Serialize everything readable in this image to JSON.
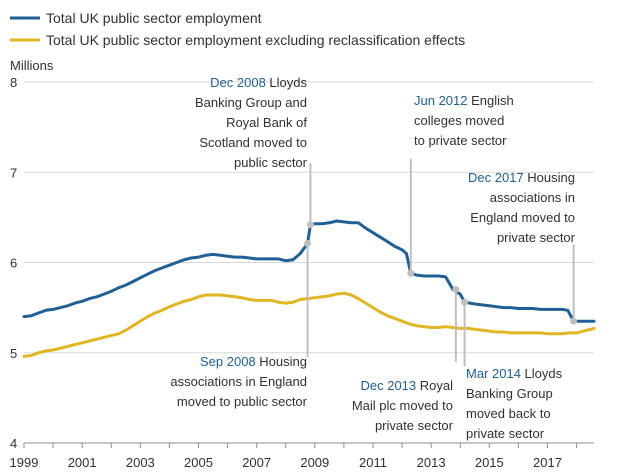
{
  "chart_data": {
    "type": "line",
    "title": "",
    "xlabel": "",
    "ylabel": "Millions",
    "ylim": [
      4,
      8
    ],
    "xlim": [
      1999,
      2018.6
    ],
    "y_ticks": [
      4,
      5,
      6,
      7,
      8
    ],
    "x_ticks": [
      1999,
      2001,
      2003,
      2005,
      2007,
      2009,
      2011,
      2013,
      2015,
      2017
    ],
    "grid": "horizontal",
    "legend_position": "top-left",
    "series": [
      {
        "name": "Total UK public sector employment",
        "color": "#206095",
        "points": [
          [
            1999.0,
            5.4
          ],
          [
            1999.25,
            5.41
          ],
          [
            1999.5,
            5.44
          ],
          [
            1999.75,
            5.47
          ],
          [
            2000.0,
            5.48
          ],
          [
            2000.25,
            5.5
          ],
          [
            2000.5,
            5.52
          ],
          [
            2000.75,
            5.55
          ],
          [
            2001.0,
            5.57
          ],
          [
            2001.25,
            5.6
          ],
          [
            2001.5,
            5.62
          ],
          [
            2001.75,
            5.65
          ],
          [
            2002.0,
            5.68
          ],
          [
            2002.25,
            5.72
          ],
          [
            2002.5,
            5.75
          ],
          [
            2002.75,
            5.79
          ],
          [
            2003.0,
            5.83
          ],
          [
            2003.25,
            5.87
          ],
          [
            2003.5,
            5.91
          ],
          [
            2003.75,
            5.94
          ],
          [
            2004.0,
            5.97
          ],
          [
            2004.25,
            6.0
          ],
          [
            2004.5,
            6.03
          ],
          [
            2004.75,
            6.05
          ],
          [
            2005.0,
            6.06
          ],
          [
            2005.25,
            6.08
          ],
          [
            2005.5,
            6.09
          ],
          [
            2005.75,
            6.08
          ],
          [
            2006.0,
            6.07
          ],
          [
            2006.25,
            6.06
          ],
          [
            2006.5,
            6.06
          ],
          [
            2006.75,
            6.05
          ],
          [
            2007.0,
            6.04
          ],
          [
            2007.25,
            6.04
          ],
          [
            2007.5,
            6.04
          ],
          [
            2007.75,
            6.04
          ],
          [
            2008.0,
            6.02
          ],
          [
            2008.25,
            6.03
          ],
          [
            2008.5,
            6.1
          ],
          [
            2008.75,
            6.21
          ],
          [
            2008.85,
            6.42
          ],
          [
            2009.0,
            6.43
          ],
          [
            2009.25,
            6.43
          ],
          [
            2009.5,
            6.44
          ],
          [
            2009.75,
            6.46
          ],
          [
            2010.0,
            6.45
          ],
          [
            2010.25,
            6.44
          ],
          [
            2010.5,
            6.44
          ],
          [
            2010.75,
            6.38
          ],
          [
            2011.0,
            6.33
          ],
          [
            2011.25,
            6.28
          ],
          [
            2011.5,
            6.23
          ],
          [
            2011.75,
            6.18
          ],
          [
            2012.0,
            6.14
          ],
          [
            2012.15,
            6.1
          ],
          [
            2012.3,
            5.88
          ],
          [
            2012.5,
            5.86
          ],
          [
            2012.75,
            5.85
          ],
          [
            2013.0,
            5.85
          ],
          [
            2013.25,
            5.85
          ],
          [
            2013.5,
            5.84
          ],
          [
            2013.75,
            5.7
          ],
          [
            2014.0,
            5.65
          ],
          [
            2014.15,
            5.56
          ],
          [
            2014.5,
            5.54
          ],
          [
            2014.75,
            5.53
          ],
          [
            2015.0,
            5.52
          ],
          [
            2015.25,
            5.51
          ],
          [
            2015.5,
            5.5
          ],
          [
            2015.75,
            5.5
          ],
          [
            2016.0,
            5.49
          ],
          [
            2016.25,
            5.49
          ],
          [
            2016.5,
            5.49
          ],
          [
            2016.75,
            5.48
          ],
          [
            2017.0,
            5.48
          ],
          [
            2017.25,
            5.48
          ],
          [
            2017.5,
            5.48
          ],
          [
            2017.7,
            5.47
          ],
          [
            2017.9,
            5.35
          ],
          [
            2018.25,
            5.35
          ],
          [
            2018.6,
            5.35
          ]
        ]
      },
      {
        "name": "Total UK public sector employment excluding reclassification effects",
        "color": "#e0b623",
        "points": [
          [
            1999.0,
            4.96
          ],
          [
            1999.25,
            4.97
          ],
          [
            1999.5,
            5.0
          ],
          [
            1999.75,
            5.02
          ],
          [
            2000.0,
            5.03
          ],
          [
            2000.25,
            5.05
          ],
          [
            2000.5,
            5.07
          ],
          [
            2000.75,
            5.09
          ],
          [
            2001.0,
            5.11
          ],
          [
            2001.25,
            5.13
          ],
          [
            2001.5,
            5.15
          ],
          [
            2001.75,
            5.17
          ],
          [
            2002.0,
            5.19
          ],
          [
            2002.25,
            5.21
          ],
          [
            2002.5,
            5.25
          ],
          [
            2002.75,
            5.3
          ],
          [
            2003.0,
            5.35
          ],
          [
            2003.25,
            5.4
          ],
          [
            2003.5,
            5.44
          ],
          [
            2003.75,
            5.47
          ],
          [
            2004.0,
            5.51
          ],
          [
            2004.25,
            5.54
          ],
          [
            2004.5,
            5.57
          ],
          [
            2004.75,
            5.59
          ],
          [
            2005.0,
            5.62
          ],
          [
            2005.25,
            5.64
          ],
          [
            2005.5,
            5.64
          ],
          [
            2005.75,
            5.64
          ],
          [
            2006.0,
            5.63
          ],
          [
            2006.25,
            5.62
          ],
          [
            2006.5,
            5.61
          ],
          [
            2006.75,
            5.59
          ],
          [
            2007.0,
            5.58
          ],
          [
            2007.25,
            5.58
          ],
          [
            2007.5,
            5.58
          ],
          [
            2007.75,
            5.56
          ],
          [
            2008.0,
            5.55
          ],
          [
            2008.25,
            5.56
          ],
          [
            2008.5,
            5.59
          ],
          [
            2008.75,
            5.6
          ],
          [
            2009.0,
            5.61
          ],
          [
            2009.25,
            5.62
          ],
          [
            2009.5,
            5.63
          ],
          [
            2009.75,
            5.65
          ],
          [
            2010.0,
            5.66
          ],
          [
            2010.25,
            5.64
          ],
          [
            2010.5,
            5.6
          ],
          [
            2010.75,
            5.55
          ],
          [
            2011.0,
            5.5
          ],
          [
            2011.25,
            5.45
          ],
          [
            2011.5,
            5.41
          ],
          [
            2011.75,
            5.38
          ],
          [
            2012.0,
            5.35
          ],
          [
            2012.25,
            5.32
          ],
          [
            2012.5,
            5.3
          ],
          [
            2012.75,
            5.29
          ],
          [
            2013.0,
            5.28
          ],
          [
            2013.25,
            5.28
          ],
          [
            2013.5,
            5.29
          ],
          [
            2013.75,
            5.28
          ],
          [
            2014.0,
            5.27
          ],
          [
            2014.25,
            5.27
          ],
          [
            2014.5,
            5.26
          ],
          [
            2014.75,
            5.25
          ],
          [
            2015.0,
            5.24
          ],
          [
            2015.25,
            5.23
          ],
          [
            2015.5,
            5.23
          ],
          [
            2015.75,
            5.22
          ],
          [
            2016.0,
            5.22
          ],
          [
            2016.25,
            5.22
          ],
          [
            2016.5,
            5.22
          ],
          [
            2016.75,
            5.22
          ],
          [
            2017.0,
            5.21
          ],
          [
            2017.25,
            5.21
          ],
          [
            2017.5,
            5.21
          ],
          [
            2017.75,
            5.22
          ],
          [
            2018.0,
            5.22
          ],
          [
            2018.25,
            5.24
          ],
          [
            2018.6,
            5.27
          ]
        ]
      }
    ],
    "annotations": [
      {
        "date": "Dec 2008",
        "text_lines": [
          "Lloyds",
          "Banking Group  and",
          "Royal Bank of",
          "Scotland moved to",
          "public sector"
        ],
        "x": 2008.85,
        "y": 6.42,
        "line_to_y": 7.1,
        "placement": "above-left"
      },
      {
        "date": "Sep 2008",
        "text_lines": [
          "Housing",
          "associations in England",
          "moved to public sector"
        ],
        "x": 2008.75,
        "y": 6.21,
        "line_to_y": 4.95,
        "placement": "below-left"
      },
      {
        "date": "Jun 2012",
        "text_lines": [
          "English",
          "colleges moved",
          "to private sector"
        ],
        "x": 2012.3,
        "y": 5.88,
        "line_to_y": 7.15,
        "placement": "above-right"
      },
      {
        "date": "Dec 2013",
        "text_lines": [
          "Royal",
          "Mail plc moved to",
          "private sector"
        ],
        "x": 2013.85,
        "y": 5.7,
        "line_to_y": 4.9,
        "placement": "below-left"
      },
      {
        "date": "Mar 2014",
        "text_lines": [
          "Lloyds",
          "Banking Group",
          "moved back to",
          "private sector"
        ],
        "x": 2014.15,
        "y": 5.56,
        "line_to_y": 4.85,
        "placement": "below-right"
      },
      {
        "date": "Dec 2017",
        "text_lines": [
          "Housing",
          "associations in",
          "England moved to",
          "private sector"
        ],
        "x": 2017.9,
        "y": 5.35,
        "line_to_y": 6.2,
        "placement": "above-left"
      }
    ]
  }
}
